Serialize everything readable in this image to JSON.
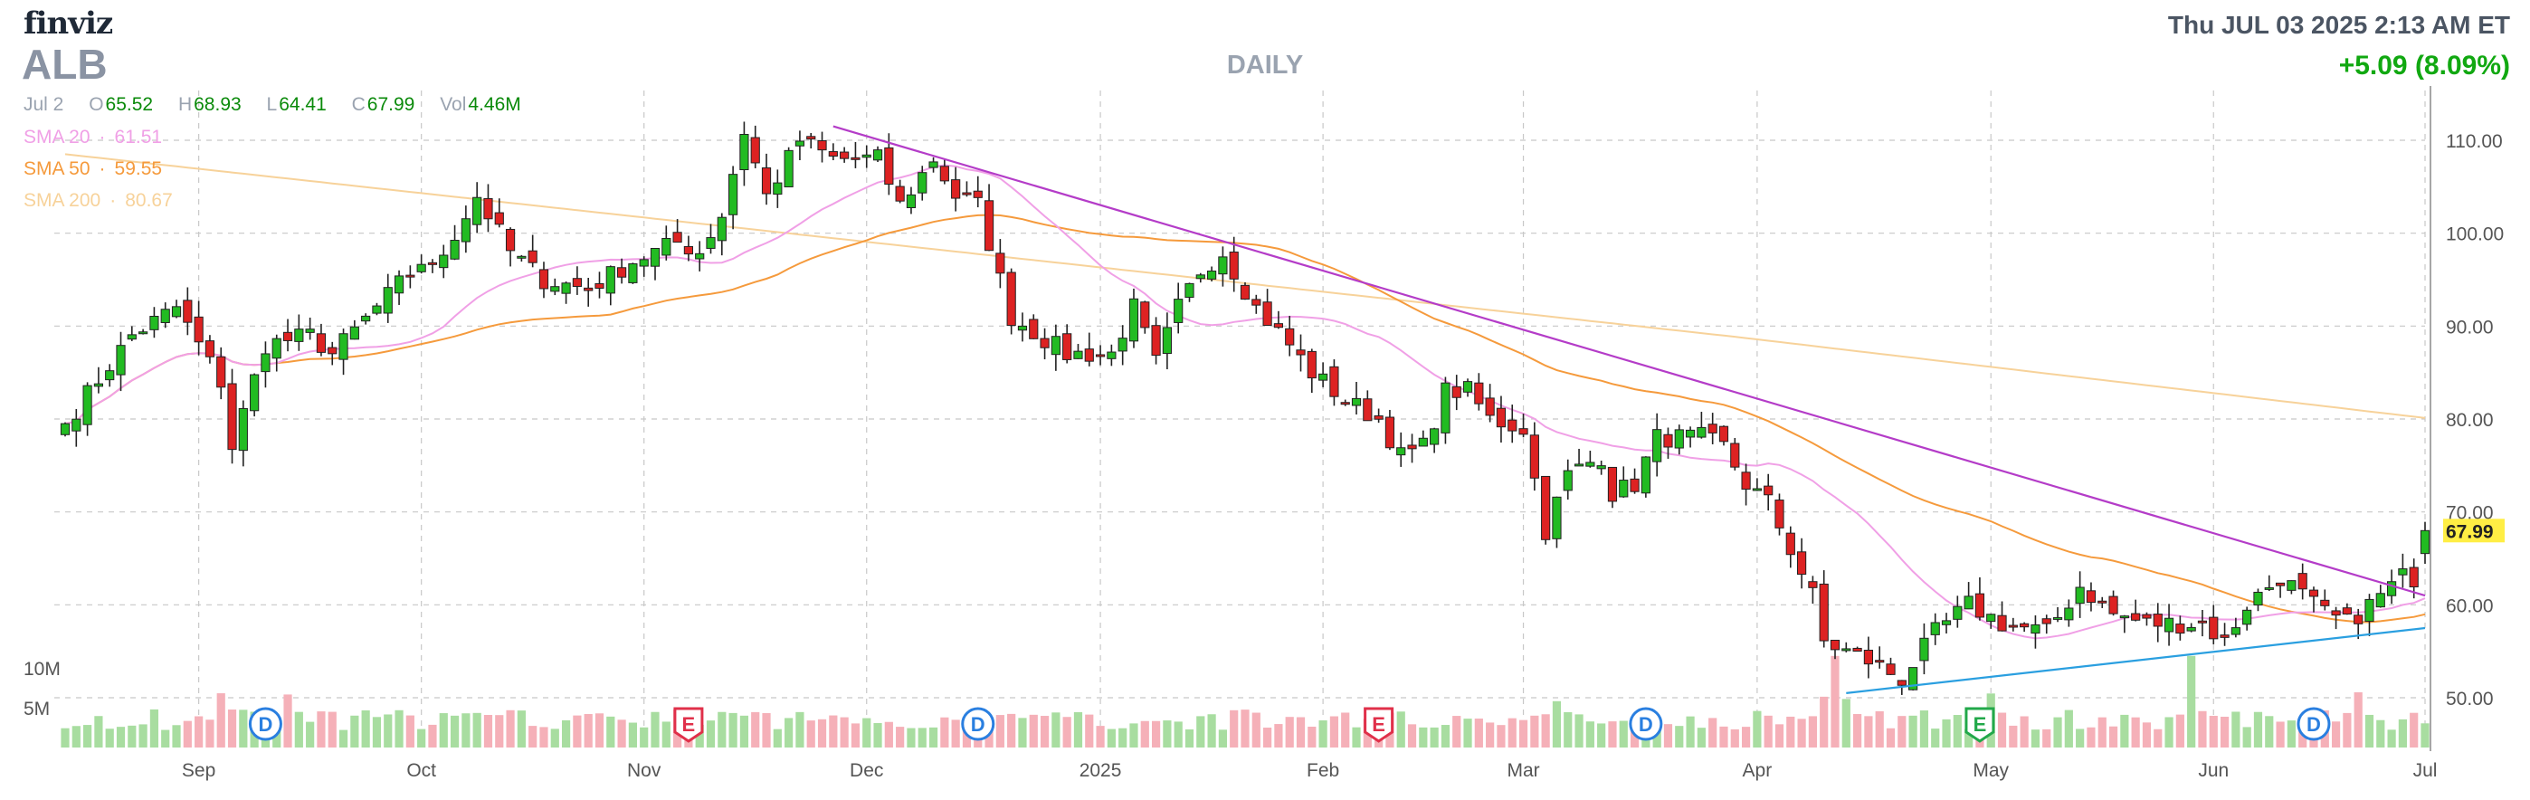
{
  "header": {
    "logo": "finviz",
    "ticker": "ALB",
    "timeframe": "DAILY",
    "datetime": "Thu JUL 03 2025 2:13 AM ET",
    "change": "+5.09 (8.09%)"
  },
  "ohlc": {
    "date": "Jul 2",
    "open_label": "O",
    "open": "65.52",
    "high_label": "H",
    "high": "68.93",
    "low_label": "L",
    "low": "64.41",
    "close_label": "C",
    "close": "67.99",
    "vol_label": "Vol",
    "vol": "4.46M"
  },
  "sma": [
    {
      "label": "SMA 20",
      "value": "61.51",
      "color": "#f0a0e6"
    },
    {
      "label": "SMA 50",
      "value": "59.55",
      "color": "#f59a3c"
    },
    {
      "label": "SMA 200",
      "value": "80.67",
      "color": "#f7d29a"
    }
  ],
  "colors": {
    "up": "#22bb22",
    "down": "#dd2222",
    "vol_up": "#a8dda0",
    "vol_down": "#f5b0b8",
    "trend_upper": "#b43cc8",
    "trend_lower": "#2a9fe0",
    "grid": "#c8c8c8",
    "last_price_bg": "#ffee44"
  },
  "chart_data": {
    "type": "candlestick",
    "title": "ALB DAILY",
    "ylim": [
      48,
      113
    ],
    "y_ticks": [
      "110.00",
      "100.00",
      "90.00",
      "80.00",
      "70.00",
      "60.00",
      "50.00"
    ],
    "y_tick_values": [
      110,
      100,
      90,
      80,
      70,
      60,
      50
    ],
    "volume_ticks": [
      "10M",
      "5M"
    ],
    "volume_tick_values": [
      10,
      5
    ],
    "last_price": "67.99",
    "x_labels": [
      "Sep",
      "Oct",
      "Nov",
      "Dec",
      "2025",
      "Feb",
      "Mar",
      "Apr",
      "May",
      "Jun",
      "Jul"
    ],
    "x_label_positions": [
      12,
      32,
      52,
      72,
      93,
      113,
      131,
      152,
      173,
      193,
      212
    ],
    "events": [
      {
        "type": "D",
        "index": 18,
        "color": "#2a7fe0"
      },
      {
        "type": "E",
        "index": 56,
        "color": "#e0304a"
      },
      {
        "type": "D",
        "index": 82,
        "color": "#2a7fe0"
      },
      {
        "type": "E",
        "index": 118,
        "color": "#e0304a"
      },
      {
        "type": "D",
        "index": 142,
        "color": "#2a7fe0"
      },
      {
        "type": "E",
        "index": 172,
        "color": "#22a84a"
      },
      {
        "type": "D",
        "index": 202,
        "color": "#2a7fe0"
      }
    ],
    "keypoints": [
      [
        0,
        79.5
      ],
      [
        6,
        89
      ],
      [
        10,
        92
      ],
      [
        14,
        84
      ],
      [
        15,
        77
      ],
      [
        18,
        88
      ],
      [
        22,
        89
      ],
      [
        24,
        87
      ],
      [
        28,
        92
      ],
      [
        32,
        97
      ],
      [
        33,
        96
      ],
      [
        37,
        104
      ],
      [
        40,
        98
      ],
      [
        43,
        95
      ],
      [
        47,
        94
      ],
      [
        51,
        97
      ],
      [
        55,
        99
      ],
      [
        57,
        98
      ],
      [
        59,
        102
      ],
      [
        61,
        111
      ],
      [
        63,
        104
      ],
      [
        66,
        110
      ],
      [
        69,
        108
      ],
      [
        73,
        108
      ],
      [
        75,
        103
      ],
      [
        78,
        108
      ],
      [
        80,
        104
      ],
      [
        82,
        103
      ],
      [
        85,
        91
      ],
      [
        90,
        87
      ],
      [
        94,
        87
      ],
      [
        96,
        92
      ],
      [
        98,
        86
      ],
      [
        100,
        92
      ],
      [
        102,
        96
      ],
      [
        104,
        98
      ],
      [
        107,
        92
      ],
      [
        110,
        88
      ],
      [
        112,
        85
      ],
      [
        115,
        82
      ],
      [
        118,
        80
      ],
      [
        120,
        76
      ],
      [
        122,
        77
      ],
      [
        124,
        83
      ],
      [
        126,
        83
      ],
      [
        128,
        80
      ],
      [
        131,
        79
      ],
      [
        133,
        68
      ],
      [
        135,
        74
      ],
      [
        138,
        76
      ],
      [
        139,
        72
      ],
      [
        141,
        73
      ],
      [
        143,
        78
      ],
      [
        147,
        78
      ],
      [
        149,
        77
      ],
      [
        151,
        73
      ],
      [
        153,
        71
      ],
      [
        155,
        66
      ],
      [
        157,
        61
      ],
      [
        158,
        56
      ],
      [
        160,
        55
      ],
      [
        162,
        54
      ],
      [
        165,
        52
      ],
      [
        168,
        57
      ],
      [
        171,
        60
      ],
      [
        174,
        58
      ],
      [
        178,
        57
      ],
      [
        181,
        62
      ],
      [
        184,
        59
      ],
      [
        187,
        58
      ],
      [
        190,
        58
      ],
      [
        192,
        58
      ],
      [
        194,
        56
      ],
      [
        196,
        60
      ],
      [
        199,
        63
      ],
      [
        201,
        61
      ],
      [
        203,
        59
      ],
      [
        205,
        58
      ],
      [
        207,
        60
      ],
      [
        210,
        63
      ],
      [
        212,
        62.9
      ]
    ],
    "last_candle": {
      "open": 65.52,
      "high": 68.93,
      "low": 64.41,
      "close": 67.99
    },
    "trendlines": [
      {
        "name": "upper",
        "from": [
          69,
          111.5
        ],
        "to": [
          212,
          61
        ]
      },
      {
        "name": "lower",
        "from": [
          160,
          50.5
        ],
        "to": [
          212,
          57.5
        ]
      }
    ]
  }
}
